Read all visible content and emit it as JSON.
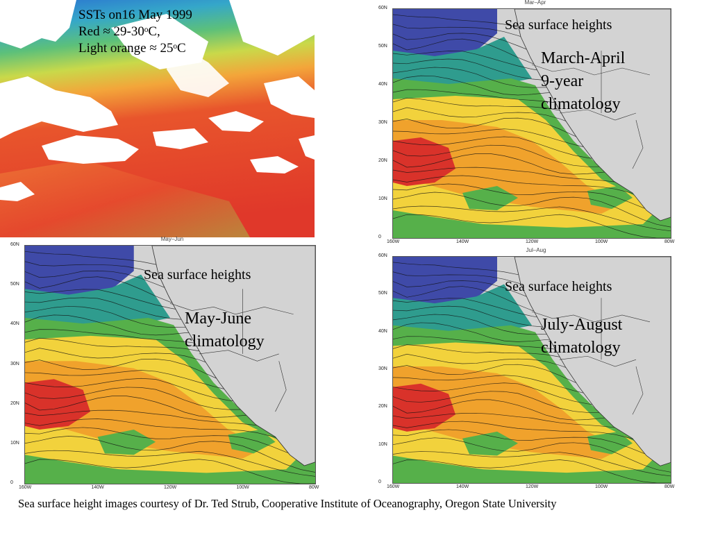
{
  "sst_panel": {
    "caption_line1": "SSTs on16 May 1999",
    "caption_line2": "Red ≈ 29-30ᵒC,",
    "caption_line3": "Light orange ≈ 25ᵒC"
  },
  "maps": [
    {
      "id": "mar-apr",
      "plot_title": "Mar–Apr",
      "ssh_label": "Sea surface heights",
      "season_lines": [
        "March-April",
        "9-year",
        "climatology"
      ]
    },
    {
      "id": "may-jun",
      "plot_title": "May–Jun",
      "ssh_label": "Sea surface heights",
      "season_lines": [
        "May-June",
        "climatology"
      ]
    },
    {
      "id": "jul-aug",
      "plot_title": "Jul–Aug",
      "ssh_label": "Sea surface heights",
      "season_lines": [
        "July-August",
        "climatology"
      ]
    }
  ],
  "axes": {
    "lat_ticks": [
      "60N",
      "50N",
      "40N",
      "30N",
      "20N",
      "10N",
      "0"
    ],
    "lon_ticks": [
      "160W",
      "140W",
      "120W",
      "100W",
      "80W"
    ]
  },
  "colors": {
    "high": "#d9322a",
    "upper_mid": "#f0a22c",
    "mid": "#f2d23c",
    "lower_mid": "#56b04a",
    "low": "#2f9c8e",
    "lowest": "#3f4aa8",
    "minimum": "#7e4ab0",
    "land": "#d3d3d3"
  },
  "credit": "Sea surface height images courtesy of Dr. Ted Strub, Cooperative Institute of Oceanography, Oregon State University"
}
